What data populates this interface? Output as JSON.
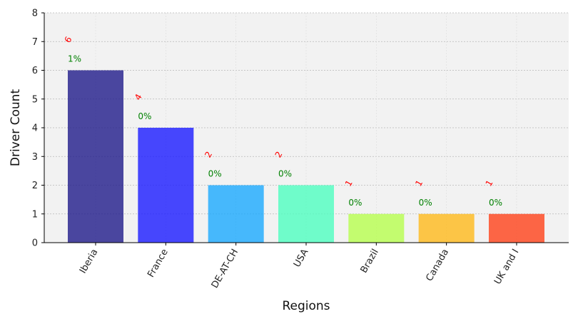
{
  "chart_data": {
    "type": "bar",
    "title": "",
    "xlabel": "Regions",
    "ylabel": "Driver Count",
    "ylim": [
      0,
      8
    ],
    "yticks": [
      0,
      1,
      2,
      3,
      4,
      5,
      6,
      7,
      8
    ],
    "grid": true,
    "categories": [
      "Iberia",
      "France",
      "DE-AT-CH",
      "USA",
      "Brazil",
      "Canada",
      "UK and I"
    ],
    "values": [
      6,
      4,
      2,
      2,
      1,
      1,
      1
    ],
    "count_labels": [
      "6",
      "4",
      "2",
      "2",
      "1",
      "1",
      "1"
    ],
    "percent_labels": [
      "1%",
      "0%",
      "0%",
      "0%",
      "0%",
      "0%",
      "0%"
    ],
    "colors": [
      "#1f1a8a",
      "#1a1aff",
      "#1aa9fe",
      "#4dfebf",
      "#b7fe4d",
      "#feb91a",
      "#fe4119"
    ],
    "count_label_color": "#ff0000",
    "percent_label_color": "#008000",
    "plot_background": "#f2f2f2"
  }
}
